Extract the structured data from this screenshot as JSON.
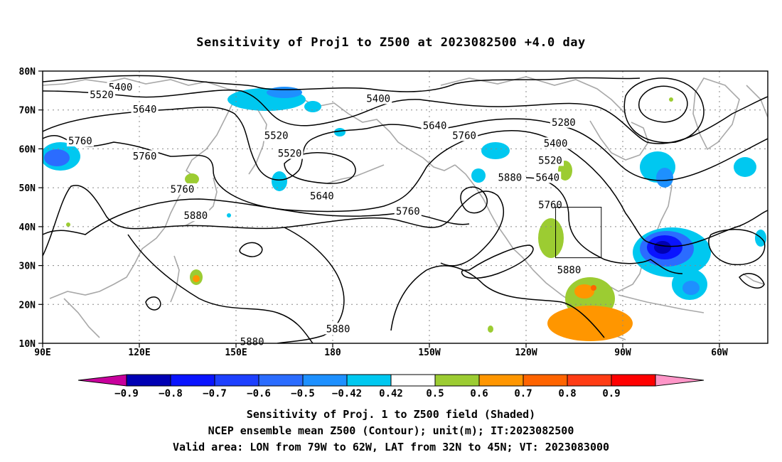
{
  "title": "Sensitivity of Proj1 to Z500 at 2023082500 +4.0 day",
  "lat_labels": [
    "80N",
    "70N",
    "60N",
    "50N",
    "40N",
    "30N",
    "20N",
    "10N"
  ],
  "lon_labels": [
    "90E",
    "120E",
    "150E",
    "180",
    "150W",
    "120W",
    "90W",
    "60W"
  ],
  "contour_labels": [
    {
      "text": "5400",
      "lon": 119,
      "lat": 75.7
    },
    {
      "text": "5520",
      "lon": 112,
      "lat": 73.8
    },
    {
      "text": "5640",
      "lon": 128,
      "lat": 70.0
    },
    {
      "text": "5760",
      "lon": 104,
      "lat": 61.9
    },
    {
      "text": "5760",
      "lon": 128,
      "lat": 58.0
    },
    {
      "text": "5520",
      "lon": 177,
      "lat": 63.3
    },
    {
      "text": "5520",
      "lon": 182,
      "lat": 58.7
    },
    {
      "text": "5400",
      "lon": 215,
      "lat": 72.8
    },
    {
      "text": "5640",
      "lon": 236,
      "lat": 65.8
    },
    {
      "text": "5760",
      "lon": 247,
      "lat": 63.3
    },
    {
      "text": "5880",
      "lon": 264,
      "lat": 52.5
    },
    {
      "text": "5640",
      "lon": 194,
      "lat": 47.7
    },
    {
      "text": "5760",
      "lon": 226,
      "lat": 43.8
    },
    {
      "text": "5760",
      "lon": 142,
      "lat": 49.5
    },
    {
      "text": "5880",
      "lon": 147,
      "lat": 42.7
    },
    {
      "text": "5280",
      "lon": 284,
      "lat": 66.7
    },
    {
      "text": "5400",
      "lon": 281,
      "lat": 61.3
    },
    {
      "text": "5520",
      "lon": 279,
      "lat": 56.9
    },
    {
      "text": "5640",
      "lon": 278,
      "lat": 52.5
    },
    {
      "text": "5760",
      "lon": 279,
      "lat": 45.5
    },
    {
      "text": "5880",
      "lon": 286,
      "lat": 28.7
    },
    {
      "text": "5880",
      "lon": 200,
      "lat": 13.6
    },
    {
      "text": "5880",
      "lon": 168,
      "lat": 10.3
    }
  ],
  "valid_area": {
    "lon_min": -79,
    "lon_max": -62,
    "lat_min": 32,
    "lat_max": 45
  },
  "colorbar": {
    "labels": [
      "-0.9",
      "-0.8",
      "-0.7",
      "-0.6",
      "-0.5",
      "-0.42",
      "0.42",
      "0.5",
      "0.6",
      "0.7",
      "0.8",
      "0.9"
    ],
    "colors": [
      "#c8009c",
      "#0000b4",
      "#0a14ff",
      "#1e40ff",
      "#2b6cff",
      "#1e90ff",
      "#00c8f0",
      "#ffffff",
      "#9ccc32",
      "#ff9600",
      "#ff6400",
      "#ff3c14",
      "#ff0000",
      "#ff96c8"
    ]
  },
  "captions": {
    "line1": "Sensitivity of Proj. 1 to Z500 field (Shaded)",
    "line2": "NCEP ensemble mean Z500 (Contour); unit(m); IT:2023082500",
    "line3": "Valid area: LON from 79W to 62W, LAT from 32N to 45N; VT: 2023083000"
  }
}
